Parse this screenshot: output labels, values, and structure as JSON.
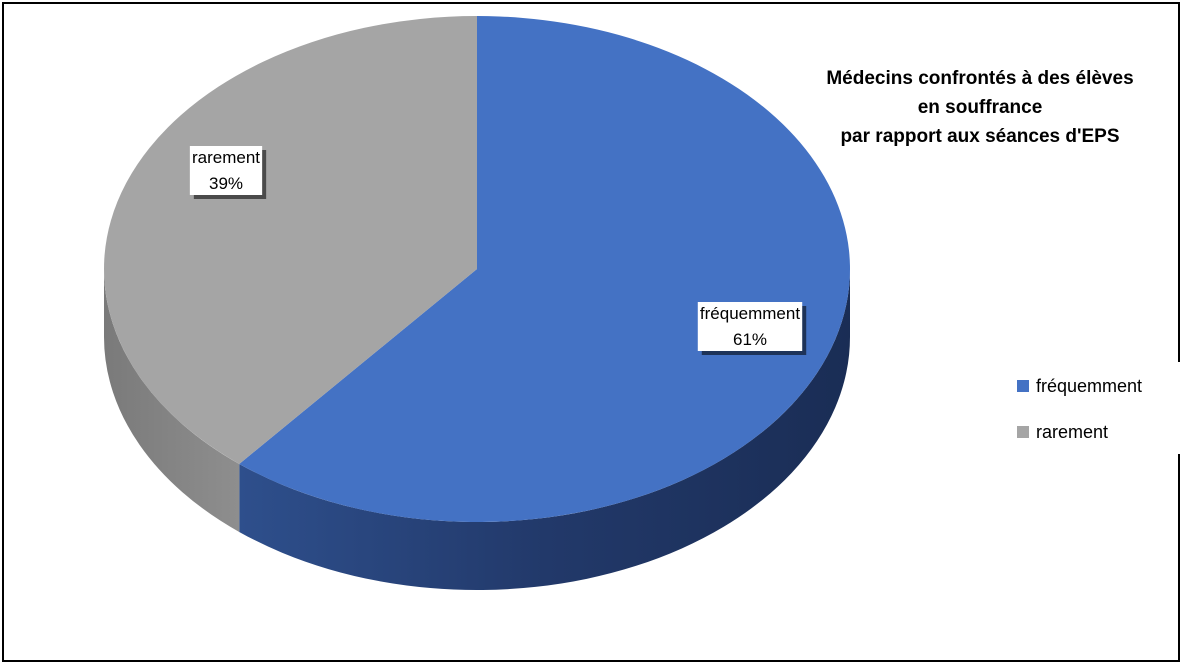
{
  "chart_data": {
    "type": "pie",
    "title_lines": [
      "Médecins confrontés à des élèves",
      "en souffrance",
      "par rapport aux séances d'EPS"
    ],
    "categories": [
      "fréquemment",
      "rarement"
    ],
    "values": [
      61,
      39
    ],
    "value_labels": [
      "61%",
      "39%"
    ],
    "colors": [
      "#4472C4",
      "#A5A5A5"
    ],
    "style": "3d-pie",
    "legend": {
      "position": "right",
      "entries": [
        "fréquemment",
        "rarement"
      ]
    }
  }
}
